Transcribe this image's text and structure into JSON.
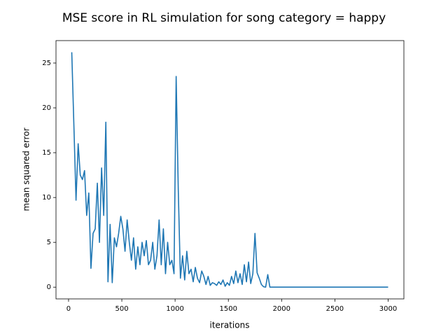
{
  "chart_data": {
    "type": "line",
    "title": "MSE score in RL simulation for song category = happy",
    "xlabel": "iterations",
    "ylabel": "mean squared error",
    "x": [
      30,
      50,
      70,
      90,
      110,
      130,
      150,
      170,
      190,
      210,
      230,
      250,
      270,
      290,
      310,
      330,
      350,
      370,
      390,
      410,
      430,
      450,
      470,
      490,
      510,
      530,
      550,
      570,
      590,
      610,
      630,
      650,
      670,
      690,
      710,
      730,
      750,
      770,
      790,
      810,
      830,
      850,
      870,
      890,
      910,
      930,
      950,
      970,
      990,
      1010,
      1030,
      1050,
      1070,
      1090,
      1110,
      1130,
      1150,
      1170,
      1190,
      1210,
      1230,
      1250,
      1270,
      1290,
      1310,
      1330,
      1350,
      1370,
      1390,
      1410,
      1430,
      1450,
      1470,
      1490,
      1510,
      1530,
      1550,
      1570,
      1590,
      1610,
      1630,
      1650,
      1670,
      1690,
      1710,
      1730,
      1750,
      1770,
      1790,
      1810,
      1830,
      1850,
      1870,
      1890,
      3000
    ],
    "series": [
      {
        "name": "mse",
        "color": "#1f77b4",
        "values": [
          26.2,
          18,
          9.7,
          16,
          12.5,
          12,
          13,
          8,
          10.5,
          2.1,
          6,
          6.5,
          11.6,
          5,
          13.3,
          8,
          18.4,
          0.6,
          7,
          0.5,
          5.5,
          4.5,
          6,
          7.9,
          6.5,
          4,
          7.5,
          5,
          3,
          5.5,
          2,
          4.5,
          2.5,
          5,
          3.5,
          5.2,
          2.5,
          3,
          5,
          2,
          3.5,
          7.5,
          2.5,
          6.5,
          1.5,
          5,
          2.5,
          3,
          1.5,
          23.5,
          10.8,
          1,
          3.5,
          0.8,
          4,
          1.5,
          2,
          0.6,
          2.2,
          1,
          0.5,
          1.8,
          1.2,
          0.3,
          1.2,
          0.2,
          0.5,
          0.4,
          0.2,
          0.6,
          0.3,
          0.8,
          0.1,
          0.5,
          0.2,
          1.2,
          0.4,
          1.8,
          0.5,
          1.5,
          0.3,
          2.5,
          0.6,
          2.8,
          0.4,
          1.5,
          6,
          1.6,
          1,
          0.3,
          0.05,
          0,
          1.4,
          0,
          0
        ]
      }
    ],
    "xlim": [
      -118,
      3148
    ],
    "xticks": [
      0,
      500,
      1000,
      1500,
      2000,
      2500,
      3000
    ],
    "ylim": [
      -1.31,
      27.5
    ],
    "yticks": [
      0,
      5,
      10,
      15,
      20,
      25
    ]
  }
}
